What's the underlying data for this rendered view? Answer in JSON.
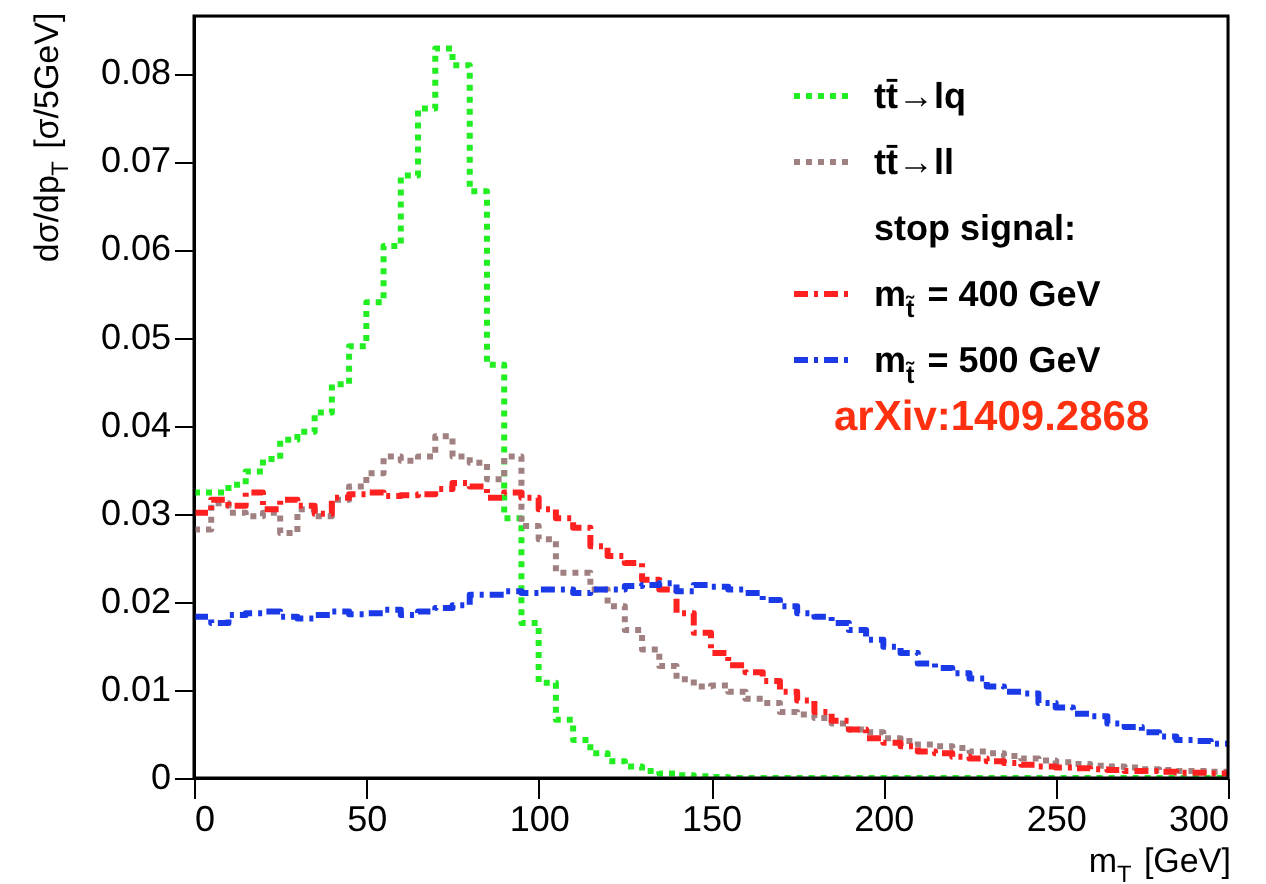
{
  "chart_data": {
    "type": "histogram",
    "xlabel": "m$_{T}$ [GeV]",
    "ylabel": "dσ/dp$_{T}$ [σ/5GeV]",
    "bins": [
      0,
      5,
      10,
      15,
      20,
      25,
      30,
      35,
      40,
      45,
      50,
      55,
      60,
      65,
      70,
      75,
      80,
      85,
      90,
      95,
      100,
      105,
      110,
      115,
      120,
      125,
      130,
      135,
      140,
      145,
      150,
      155,
      160,
      165,
      170,
      175,
      180,
      185,
      190,
      195,
      200,
      205,
      210,
      215,
      220,
      225,
      230,
      235,
      240,
      245,
      250,
      255,
      260,
      265,
      270,
      275,
      280,
      285,
      290,
      295,
      300
    ],
    "xlim": [
      0,
      300
    ],
    "xticks": [
      0,
      50,
      100,
      150,
      200,
      250,
      300
    ],
    "ylim": [
      0,
      0.0865
    ],
    "yticks": [
      {
        "value": 0,
        "label": "0"
      },
      0.01,
      0.02,
      0.03,
      0.04,
      0.05,
      0.06,
      0.07,
      0.08
    ],
    "grid": false,
    "legend": "top right",
    "annotations": [
      "stop signal:",
      "arXiv:1409.2868"
    ],
    "series": [
      {
        "name": "tt̄→lq",
        "color": "#22ee22",
        "line_style": "dotted",
        "values": [
          0.0324,
          0.0324,
          0.0333,
          0.0348,
          0.0362,
          0.0384,
          0.0393,
          0.0415,
          0.0447,
          0.049,
          0.054,
          0.0604,
          0.0684,
          0.076,
          0.0828,
          0.0809,
          0.0666,
          0.0469,
          0.0295,
          0.0176,
          0.0108,
          0.0066,
          0.0043,
          0.0028,
          0.0019,
          0.0013,
          0.0008,
          0.0005,
          0.0003,
          0.0002,
          0.0001,
          0,
          0,
          0,
          0,
          0,
          0,
          0,
          0,
          0,
          0,
          0,
          0,
          0,
          0,
          0,
          0,
          0,
          0,
          0,
          0,
          0,
          0,
          0,
          0,
          0,
          0,
          0,
          0,
          0
        ]
      },
      {
        "name": "tt̄→ll",
        "color": "#a08080",
        "line_style": "dotted",
        "values": [
          0.0282,
          0.0312,
          0.0301,
          0.0297,
          0.0301,
          0.0278,
          0.0305,
          0.0297,
          0.0316,
          0.0331,
          0.0346,
          0.0365,
          0.036,
          0.0365,
          0.0388,
          0.0365,
          0.0358,
          0.0339,
          0.0365,
          0.0286,
          0.0271,
          0.0233,
          0.0233,
          0.0214,
          0.0195,
          0.0168,
          0.0146,
          0.0127,
          0.0112,
          0.0104,
          0.0105,
          0.0098,
          0.009,
          0.0085,
          0.0075,
          0.0072,
          0.0068,
          0.0062,
          0.0055,
          0.0052,
          0.0045,
          0.0042,
          0.0038,
          0.0036,
          0.0034,
          0.003,
          0.0028,
          0.0025,
          0.0022,
          0.002,
          0.0018,
          0.0016,
          0.0014,
          0.0013,
          0.0012,
          0.001,
          0.0009,
          0.0008,
          0.0008,
          0.0007
        ]
      },
      {
        "name": "m$_{t̃}$ = 400 GeV",
        "color": "#ff2020",
        "line_style": "dashed",
        "values": [
          0.0301,
          0.0316,
          0.0309,
          0.0324,
          0.0305,
          0.0316,
          0.0309,
          0.03,
          0.0318,
          0.0322,
          0.0324,
          0.032,
          0.0321,
          0.0322,
          0.0328,
          0.0335,
          0.0331,
          0.0318,
          0.0324,
          0.0318,
          0.0305,
          0.0295,
          0.0284,
          0.0263,
          0.0252,
          0.0244,
          0.0225,
          0.0214,
          0.0187,
          0.0165,
          0.0142,
          0.0128,
          0.012,
          0.011,
          0.0098,
          0.0088,
          0.0075,
          0.0065,
          0.0055,
          0.0045,
          0.004,
          0.0036,
          0.003,
          0.0028,
          0.0024,
          0.0022,
          0.0019,
          0.0017,
          0.0015,
          0.0013,
          0.0012,
          0.0011,
          0.001,
          0.0009,
          0.0008,
          0.0008,
          0.0007,
          0.0006,
          0.0006,
          0.0005
        ]
      },
      {
        "name": "m$_{t̃}$ = 500 GeV",
        "color": "#1a3ae8",
        "line_style": "dashed",
        "values": [
          0.0183,
          0.0176,
          0.0185,
          0.0187,
          0.0189,
          0.0183,
          0.0181,
          0.0185,
          0.0189,
          0.0186,
          0.0187,
          0.0191,
          0.0185,
          0.0189,
          0.0193,
          0.0196,
          0.0208,
          0.0208,
          0.0212,
          0.021,
          0.0214,
          0.0214,
          0.021,
          0.0214,
          0.0214,
          0.0218,
          0.0219,
          0.0221,
          0.0212,
          0.0219,
          0.0217,
          0.0214,
          0.021,
          0.0202,
          0.0195,
          0.0187,
          0.0183,
          0.0176,
          0.0168,
          0.0157,
          0.0149,
          0.0142,
          0.013,
          0.0125,
          0.0119,
          0.0113,
          0.0104,
          0.0098,
          0.0096,
          0.0085,
          0.008,
          0.0073,
          0.007,
          0.0062,
          0.0058,
          0.0052,
          0.0047,
          0.0043,
          0.0042,
          0.0039
        ]
      }
    ]
  }
}
